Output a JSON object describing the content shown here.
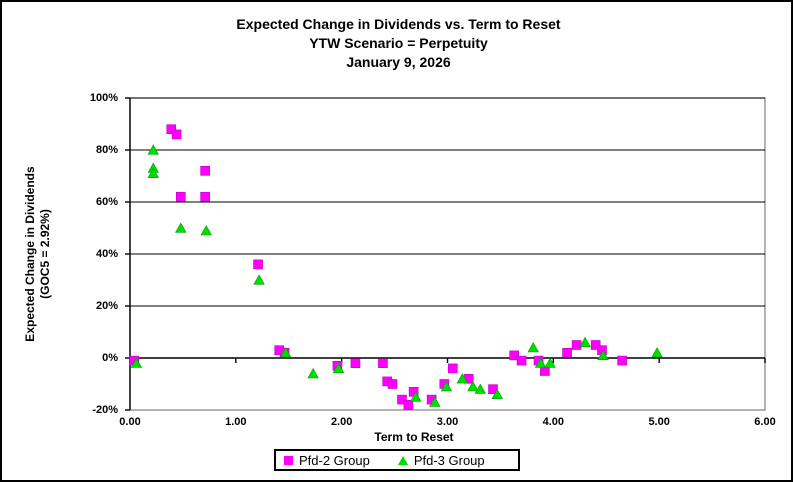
{
  "title": {
    "lines": [
      "Expected Change in Dividends vs. Term to Reset",
      "YTW Scenario = Perpetuity",
      "January 9, 2026"
    ]
  },
  "chart_data": {
    "type": "scatter",
    "title": "Expected Change in Dividends vs. Term to Reset — YTW Scenario = Perpetuity — January 9, 2026",
    "xlabel": "Term to Reset",
    "ylabel": "Expected Change in Dividends (GOC5 = 2.92%)",
    "ylabel_lines": [
      "Expected Change in Dividends",
      "(GOC5 = 2.92%)"
    ],
    "xlim": [
      0,
      6
    ],
    "ylim": [
      -20,
      100
    ],
    "x_ticks": [
      "0.00",
      "1.00",
      "2.00",
      "3.00",
      "4.00",
      "5.00",
      "6.00"
    ],
    "x_tick_values": [
      0,
      1,
      2,
      3,
      4,
      5,
      6
    ],
    "y_ticks": [
      "100%",
      "80%",
      "60%",
      "40%",
      "20%",
      "0%",
      "-20%"
    ],
    "y_tick_values": [
      100,
      80,
      60,
      40,
      20,
      0,
      -20
    ],
    "grid": "horizontal-only",
    "legend_position": "bottom",
    "colors": {
      "grid": "#000000",
      "axis": "#000000",
      "plot_border": "#808080",
      "pfd2": "#FF00FF",
      "pfd3": "#00DD00"
    },
    "series": [
      {
        "name": "Pfd-2 Group",
        "marker": "square",
        "color": "#FF00FF",
        "points": [
          [
            0.04,
            -1
          ],
          [
            0.39,
            88
          ],
          [
            0.44,
            86
          ],
          [
            0.48,
            62
          ],
          [
            0.71,
            72
          ],
          [
            0.71,
            62
          ],
          [
            1.21,
            36
          ],
          [
            1.41,
            3
          ],
          [
            1.46,
            2
          ],
          [
            1.96,
            -3
          ],
          [
            2.13,
            -2
          ],
          [
            2.39,
            -2
          ],
          [
            2.43,
            -9
          ],
          [
            2.48,
            -10
          ],
          [
            2.57,
            -16
          ],
          [
            2.63,
            -18
          ],
          [
            2.68,
            -13
          ],
          [
            2.85,
            -16
          ],
          [
            2.97,
            -10
          ],
          [
            3.05,
            -4
          ],
          [
            3.2,
            -8
          ],
          [
            3.43,
            -12
          ],
          [
            3.63,
            1
          ],
          [
            3.7,
            -1
          ],
          [
            3.86,
            -1
          ],
          [
            3.92,
            -5
          ],
          [
            4.13,
            2
          ],
          [
            4.22,
            5
          ],
          [
            4.4,
            5
          ],
          [
            4.46,
            3
          ],
          [
            4.65,
            -1
          ]
        ]
      },
      {
        "name": "Pfd-3 Group",
        "marker": "triangle",
        "color": "#00DD00",
        "points": [
          [
            0.06,
            -2
          ],
          [
            0.22,
            80
          ],
          [
            0.22,
            73
          ],
          [
            0.22,
            71
          ],
          [
            0.48,
            50
          ],
          [
            0.72,
            49
          ],
          [
            1.22,
            30
          ],
          [
            1.47,
            2
          ],
          [
            1.73,
            -6
          ],
          [
            1.97,
            -4
          ],
          [
            2.7,
            -15
          ],
          [
            2.88,
            -17
          ],
          [
            2.99,
            -11
          ],
          [
            3.14,
            -8
          ],
          [
            3.24,
            -11
          ],
          [
            3.31,
            -12
          ],
          [
            3.47,
            -14
          ],
          [
            3.81,
            4
          ],
          [
            3.88,
            -2
          ],
          [
            3.97,
            -2
          ],
          [
            4.3,
            6
          ],
          [
            4.47,
            1
          ],
          [
            4.98,
            2
          ]
        ]
      }
    ]
  }
}
